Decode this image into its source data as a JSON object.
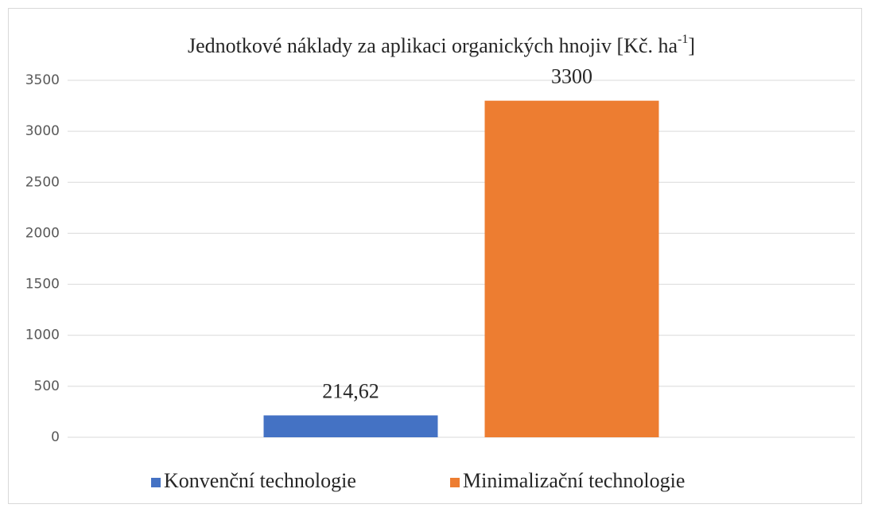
{
  "chart_data": {
    "type": "bar",
    "title_parts": [
      "Jednotkové náklady za aplikaci organických hnojiv [Kč. ha",
      "-1",
      "]"
    ],
    "categories": [
      null
    ],
    "series": [
      {
        "name": "Konvenční technologie",
        "color": "#4472c4",
        "values": [
          214.62
        ],
        "value_labels": [
          "214,62"
        ]
      },
      {
        "name": "Minimalizační technologie",
        "color": "#ed7d31",
        "values": [
          3300
        ]
      }
    ],
    "ylim": [
      0,
      3500
    ],
    "yticks": [
      0,
      500,
      1000,
      1500,
      2000,
      2500,
      3000,
      3500
    ],
    "grid": true,
    "legend": "bottom"
  }
}
